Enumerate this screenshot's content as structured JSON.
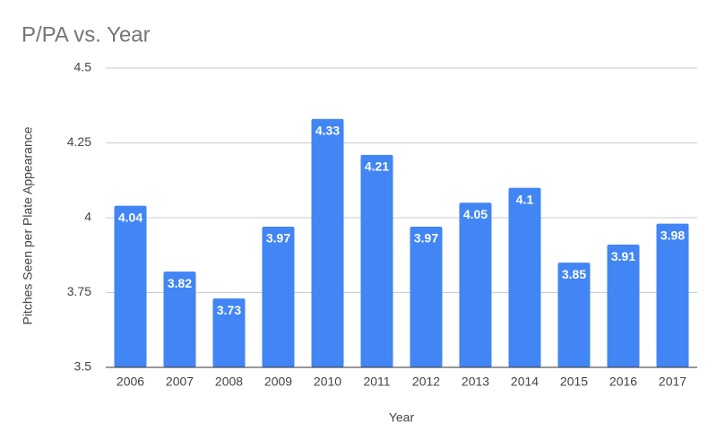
{
  "chart_data": {
    "type": "bar",
    "title": "P/PA vs. Year",
    "x_label": "Year",
    "y_label": "Pitches Seen per Plate Appearance",
    "categories": [
      "2006",
      "2007",
      "2008",
      "2009",
      "2010",
      "2011",
      "2012",
      "2013",
      "2014",
      "2015",
      "2016",
      "2017"
    ],
    "values": [
      4.04,
      3.82,
      3.73,
      3.97,
      4.33,
      4.21,
      3.97,
      4.05,
      4.1,
      3.85,
      3.91,
      3.98
    ],
    "color": "#4285f4",
    "ylim": [
      3.5,
      4.5
    ],
    "yticks": [
      3.5,
      3.75,
      4,
      4.25,
      4.5
    ],
    "grid": true
  }
}
